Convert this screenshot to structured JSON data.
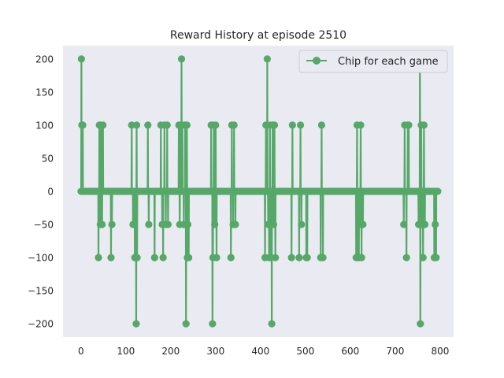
{
  "chart_data": {
    "type": "line",
    "title": "Reward History at episode 2510",
    "xlabel": "",
    "ylabel": "",
    "xlim": [
      -40,
      830
    ],
    "ylim": [
      -220,
      220
    ],
    "xticks": [
      0,
      100,
      200,
      300,
      400,
      500,
      600,
      700,
      800
    ],
    "yticks": [
      -200,
      -150,
      -100,
      -50,
      0,
      50,
      100,
      150,
      200
    ],
    "grid": false,
    "legend_placement": "top-right",
    "background_color": "#eaeaf2",
    "series": [
      {
        "name": "Chip for each game",
        "color": "#55a868",
        "marker": "circle",
        "baseline": 0,
        "x_range": [
          0,
          795
        ],
        "events": [
          {
            "x": 1,
            "y": 200
          },
          {
            "x": 2,
            "y": 100
          },
          {
            "x": 4,
            "y": 100
          },
          {
            "x": 39,
            "y": -100
          },
          {
            "x": 41,
            "y": 100
          },
          {
            "x": 43,
            "y": -50
          },
          {
            "x": 45,
            "y": 100
          },
          {
            "x": 47,
            "y": -50
          },
          {
            "x": 49,
            "y": 100
          },
          {
            "x": 67,
            "y": -100
          },
          {
            "x": 69,
            "y": -50
          },
          {
            "x": 113,
            "y": 100
          },
          {
            "x": 116,
            "y": -50
          },
          {
            "x": 120,
            "y": -100
          },
          {
            "x": 123,
            "y": -200
          },
          {
            "x": 124,
            "y": 100
          },
          {
            "x": 125,
            "y": -100
          },
          {
            "x": 149,
            "y": 100
          },
          {
            "x": 151,
            "y": -50
          },
          {
            "x": 164,
            "y": -100
          },
          {
            "x": 178,
            "y": 100
          },
          {
            "x": 181,
            "y": -50
          },
          {
            "x": 183,
            "y": -100
          },
          {
            "x": 186,
            "y": 100
          },
          {
            "x": 189,
            "y": -50
          },
          {
            "x": 192,
            "y": 100
          },
          {
            "x": 194,
            "y": -50
          },
          {
            "x": 218,
            "y": 100
          },
          {
            "x": 220,
            "y": -50
          },
          {
            "x": 222,
            "y": 100
          },
          {
            "x": 224,
            "y": 200
          },
          {
            "x": 226,
            "y": 100
          },
          {
            "x": 229,
            "y": -50
          },
          {
            "x": 232,
            "y": 100
          },
          {
            "x": 234,
            "y": -200
          },
          {
            "x": 236,
            "y": 100
          },
          {
            "x": 237,
            "y": -100
          },
          {
            "x": 238,
            "y": -50
          },
          {
            "x": 240,
            "y": -100
          },
          {
            "x": 290,
            "y": 100
          },
          {
            "x": 293,
            "y": -200
          },
          {
            "x": 294,
            "y": -100
          },
          {
            "x": 296,
            "y": 100
          },
          {
            "x": 298,
            "y": -50
          },
          {
            "x": 300,
            "y": 100
          },
          {
            "x": 302,
            "y": -100
          },
          {
            "x": 334,
            "y": -100
          },
          {
            "x": 336,
            "y": 100
          },
          {
            "x": 339,
            "y": -50
          },
          {
            "x": 341,
            "y": 100
          },
          {
            "x": 344,
            "y": -50
          },
          {
            "x": 410,
            "y": -100
          },
          {
            "x": 412,
            "y": 100
          },
          {
            "x": 415,
            "y": 200
          },
          {
            "x": 417,
            "y": -50
          },
          {
            "x": 419,
            "y": -100
          },
          {
            "x": 421,
            "y": 100
          },
          {
            "x": 423,
            "y": -100
          },
          {
            "x": 425,
            "y": -200
          },
          {
            "x": 427,
            "y": 100
          },
          {
            "x": 429,
            "y": -50
          },
          {
            "x": 431,
            "y": 100
          },
          {
            "x": 433,
            "y": -100
          },
          {
            "x": 469,
            "y": -100
          },
          {
            "x": 471,
            "y": 100
          },
          {
            "x": 486,
            "y": -100
          },
          {
            "x": 489,
            "y": 100
          },
          {
            "x": 491,
            "y": -50
          },
          {
            "x": 502,
            "y": -100
          },
          {
            "x": 504,
            "y": -100
          },
          {
            "x": 534,
            "y": -100
          },
          {
            "x": 536,
            "y": 100
          },
          {
            "x": 539,
            "y": -100
          },
          {
            "x": 613,
            "y": -100
          },
          {
            "x": 615,
            "y": 100
          },
          {
            "x": 617,
            "y": -100
          },
          {
            "x": 619,
            "y": -100
          },
          {
            "x": 621,
            "y": -50
          },
          {
            "x": 623,
            "y": 100
          },
          {
            "x": 625,
            "y": -100
          },
          {
            "x": 628,
            "y": -50
          },
          {
            "x": 719,
            "y": -50
          },
          {
            "x": 721,
            "y": 100
          },
          {
            "x": 725,
            "y": -100
          },
          {
            "x": 728,
            "y": 100
          },
          {
            "x": 730,
            "y": 100
          },
          {
            "x": 752,
            "y": -50
          },
          {
            "x": 755,
            "y": 200
          },
          {
            "x": 756,
            "y": -200
          },
          {
            "x": 758,
            "y": 100
          },
          {
            "x": 760,
            "y": -50
          },
          {
            "x": 762,
            "y": -100
          },
          {
            "x": 764,
            "y": 100
          },
          {
            "x": 766,
            "y": -50
          },
          {
            "x": 787,
            "y": -100
          },
          {
            "x": 789,
            "y": -50
          },
          {
            "x": 791,
            "y": -100
          }
        ]
      }
    ]
  }
}
